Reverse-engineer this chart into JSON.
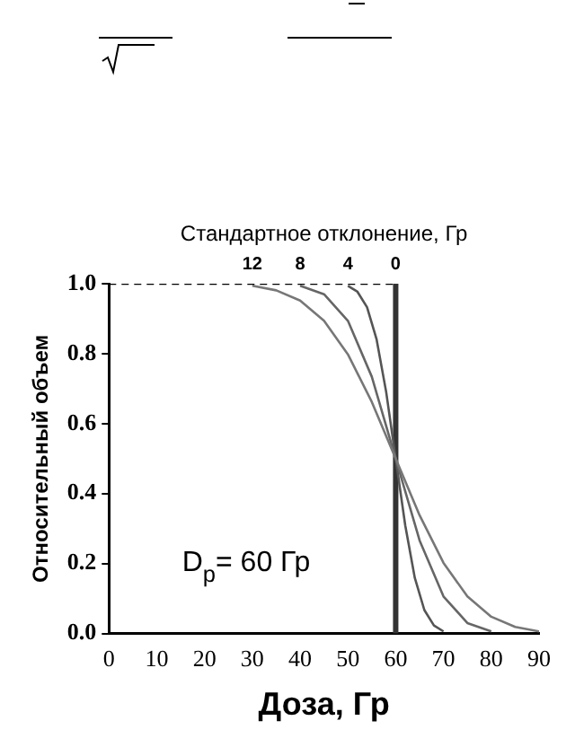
{
  "chart_data": {
    "type": "line",
    "legend_title": "Стандартное отклонение, Гр",
    "xlabel": "Доза, Гр",
    "ylabel": "Относительный объем",
    "annotations": [
      "D$_{p}$= 60 Гр"
    ],
    "xlim": [
      0,
      90
    ],
    "xticks": [
      0,
      10,
      20,
      30,
      40,
      50,
      60,
      70,
      80,
      90
    ],
    "ylim": [
      0,
      1
    ],
    "yticks": [
      {
        "value": 0,
        "label": "0.0"
      },
      {
        "value": 0.2,
        "label": "0.2"
      },
      {
        "value": 0.4,
        "label": "0.4"
      },
      {
        "value": 0.6,
        "label": "0.6"
      },
      {
        "value": 0.8,
        "label": "0.8"
      },
      {
        "value": 1,
        "label": "1.0"
      }
    ],
    "grid": false,
    "legend": false,
    "marker": "none",
    "series": [
      {
        "color": "#000000",
        "line_style": "dashed",
        "x": [
          0,
          60
        ],
        "values": [
          1,
          1
        ]
      },
      {
        "name": "12",
        "color": "#777777",
        "line_style": "solid",
        "x": [
          30,
          35,
          40,
          45,
          50,
          55,
          60,
          65,
          70,
          75,
          80,
          85,
          90
        ],
        "values": [
          0.994,
          0.981,
          0.952,
          0.894,
          0.798,
          0.662,
          0.5,
          0.338,
          0.202,
          0.106,
          0.048,
          0.019,
          0.006
        ]
      },
      {
        "name": "8",
        "color": "#666666",
        "line_style": "solid",
        "x": [
          40,
          45,
          50,
          55,
          60,
          65,
          70,
          75,
          80
        ],
        "values": [
          0.994,
          0.97,
          0.894,
          0.734,
          0.5,
          0.266,
          0.106,
          0.03,
          0.006
        ]
      },
      {
        "name": "4",
        "color": "#555555",
        "line_style": "solid",
        "x": [
          50,
          52,
          54,
          56,
          58,
          60,
          62,
          64,
          66,
          68,
          70
        ],
        "values": [
          0.994,
          0.977,
          0.933,
          0.841,
          0.691,
          0.5,
          0.309,
          0.159,
          0.067,
          0.023,
          0.006
        ]
      },
      {
        "name": "0",
        "color": "#333333",
        "line_style": "solid",
        "x": [
          60,
          60
        ],
        "values": [
          1,
          0
        ]
      }
    ]
  }
}
